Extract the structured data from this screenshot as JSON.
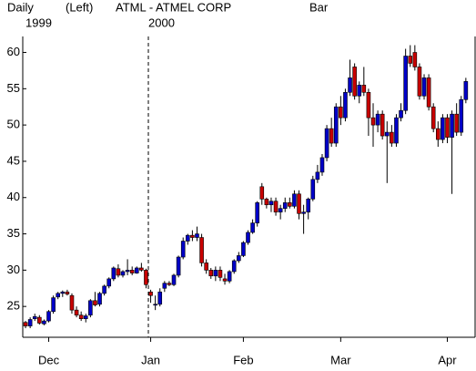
{
  "chart_data": {
    "type": "candlestick",
    "period": "Daily",
    "axis_side": "(Left)",
    "title": "ATML - ATMEL CORP",
    "style": "Bar",
    "year_labels": [
      {
        "value": 0,
        "label": "1999"
      },
      {
        "value": 26.5,
        "label": "2000"
      }
    ],
    "up_color": "#0000c8",
    "down_color": "#c80000",
    "xlim": [
      -0.6,
      96.6
    ],
    "xticks": [
      {
        "value": 5,
        "label": "Dec"
      },
      {
        "value": 27,
        "label": "Jan"
      },
      {
        "value": 47,
        "label": "Feb"
      },
      {
        "value": 68,
        "label": "Mar"
      },
      {
        "value": 91,
        "label": "Apr"
      }
    ],
    "ylim": [
      20.75,
      62.2
    ],
    "yticks": [
      25,
      30,
      35,
      40,
      45,
      50,
      55,
      60
    ],
    "ohlc": [
      [
        22.8,
        23.0,
        22.0,
        22.3
      ],
      [
        22.3,
        23.5,
        22.0,
        23.2
      ],
      [
        23.3,
        24.0,
        23.0,
        23.6
      ],
      [
        23.5,
        23.8,
        22.5,
        22.7
      ],
      [
        22.6,
        23.2,
        22.4,
        23.0
      ],
      [
        23.0,
        24.5,
        22.8,
        24.3
      ],
      [
        24.3,
        26.5,
        24.0,
        26.2
      ],
      [
        26.3,
        27.0,
        26.0,
        26.8
      ],
      [
        26.8,
        27.2,
        26.3,
        27.0
      ],
      [
        27.0,
        27.3,
        26.5,
        26.7
      ],
      [
        26.5,
        26.8,
        24.0,
        24.5
      ],
      [
        24.5,
        25.0,
        23.5,
        23.8
      ],
      [
        23.8,
        24.3,
        23.0,
        23.3
      ],
      [
        23.3,
        24.0,
        22.8,
        23.7
      ],
      [
        23.8,
        26.0,
        23.5,
        25.8
      ],
      [
        25.8,
        27.0,
        25.0,
        25.2
      ],
      [
        25.3,
        27.0,
        25.0,
        26.8
      ],
      [
        26.8,
        28.0,
        26.5,
        27.8
      ],
      [
        27.8,
        29.0,
        27.5,
        28.8
      ],
      [
        28.8,
        30.5,
        28.5,
        30.3
      ],
      [
        30.2,
        30.8,
        29.0,
        29.3
      ],
      [
        29.3,
        30.0,
        29.0,
        29.8
      ],
      [
        29.8,
        31.5,
        29.3,
        30.0
      ],
      [
        30.0,
        30.5,
        29.3,
        29.6
      ],
      [
        29.6,
        30.5,
        29.5,
        30.3
      ],
      [
        30.3,
        31.0,
        29.8,
        30.0
      ],
      [
        30.0,
        30.2,
        27.5,
        28.0
      ],
      [
        27.0,
        27.3,
        25.5,
        26.5
      ],
      [
        25.3,
        26.5,
        24.5,
        25.3
      ],
      [
        25.3,
        27.5,
        25.0,
        27.0
      ],
      [
        27.5,
        28.5,
        27.0,
        28.2
      ],
      [
        28.2,
        28.5,
        27.8,
        28.0
      ],
      [
        28.0,
        29.5,
        27.8,
        29.3
      ],
      [
        29.3,
        32.0,
        29.0,
        31.8
      ],
      [
        31.8,
        34.5,
        31.5,
        34.0
      ],
      [
        34.0,
        35.0,
        33.5,
        34.8
      ],
      [
        34.8,
        35.5,
        34.0,
        34.5
      ],
      [
        34.5,
        36.0,
        34.0,
        35.0
      ],
      [
        34.5,
        35.0,
        30.5,
        31.0
      ],
      [
        31.0,
        31.5,
        29.5,
        30.0
      ],
      [
        30.0,
        30.3,
        28.8,
        29.2
      ],
      [
        29.2,
        30.5,
        28.5,
        30.0
      ],
      [
        30.0,
        30.5,
        28.5,
        29.0
      ],
      [
        28.8,
        29.5,
        28.0,
        28.5
      ],
      [
        28.5,
        30.0,
        28.2,
        29.8
      ],
      [
        29.8,
        31.5,
        29.5,
        31.3
      ],
      [
        31.3,
        32.5,
        31.0,
        32.0
      ],
      [
        32.0,
        34.0,
        31.8,
        33.8
      ],
      [
        33.8,
        35.5,
        33.5,
        35.2
      ],
      [
        35.2,
        37.0,
        35.0,
        36.5
      ],
      [
        36.5,
        39.5,
        36.0,
        39.3
      ],
      [
        41.5,
        42.0,
        39.0,
        39.8
      ],
      [
        39.8,
        40.0,
        38.5,
        39.0
      ],
      [
        39.0,
        40.0,
        38.0,
        39.5
      ],
      [
        39.5,
        40.0,
        37.5,
        38.0
      ],
      [
        38.0,
        39.0,
        37.0,
        38.5
      ],
      [
        38.5,
        40.0,
        38.0,
        39.3
      ],
      [
        39.3,
        40.0,
        38.5,
        38.8
      ],
      [
        38.8,
        41.0,
        38.5,
        40.5
      ],
      [
        40.5,
        41.0,
        37.0,
        37.8
      ],
      [
        37.8,
        39.0,
        35.0,
        38.0
      ],
      [
        38.0,
        40.0,
        37.0,
        39.8
      ],
      [
        39.8,
        43.0,
        39.5,
        42.5
      ],
      [
        42.5,
        44.5,
        42.0,
        43.5
      ],
      [
        43.5,
        46.0,
        43.0,
        45.5
      ],
      [
        45.5,
        50.0,
        45.0,
        49.5
      ],
      [
        49.5,
        51.0,
        47.0,
        47.5
      ],
      [
        47.5,
        53.0,
        47.0,
        52.5
      ],
      [
        52.5,
        54.0,
        50.0,
        51.0
      ],
      [
        51.0,
        55.0,
        50.5,
        54.5
      ],
      [
        54.5,
        59.0,
        54.0,
        56.5
      ],
      [
        58.0,
        58.5,
        53.5,
        54.0
      ],
      [
        54.0,
        56.0,
        53.0,
        55.5
      ],
      [
        55.5,
        58.0,
        54.0,
        54.5
      ],
      [
        54.5,
        55.0,
        48.5,
        51.0
      ],
      [
        51.0,
        53.0,
        47.0,
        50.0
      ],
      [
        50.0,
        52.0,
        49.0,
        51.5
      ],
      [
        51.5,
        52.0,
        48.0,
        48.5
      ],
      [
        48.5,
        50.5,
        42.0,
        49.0
      ],
      [
        49.0,
        50.0,
        47.0,
        47.5
      ],
      [
        47.5,
        51.5,
        47.0,
        51.0
      ],
      [
        51.0,
        53.0,
        50.5,
        52.0
      ],
      [
        52.0,
        60.5,
        51.5,
        59.5
      ],
      [
        59.5,
        61.0,
        58.0,
        58.5
      ],
      [
        60.0,
        61.0,
        57.5,
        58.0
      ],
      [
        58.0,
        58.5,
        53.5,
        54.0
      ],
      [
        54.0,
        57.0,
        53.5,
        56.5
      ],
      [
        56.5,
        57.0,
        52.0,
        52.5
      ],
      [
        52.5,
        53.0,
        49.0,
        49.5
      ],
      [
        49.5,
        50.5,
        47.0,
        48.0
      ],
      [
        48.0,
        51.5,
        47.5,
        51.0
      ],
      [
        51.0,
        51.5,
        47.5,
        48.3
      ],
      [
        48.3,
        52.0,
        40.5,
        51.5
      ],
      [
        51.5,
        53.0,
        48.5,
        49.0
      ],
      [
        49.0,
        54.0,
        48.5,
        53.5
      ],
      [
        53.5,
        56.5,
        53.0,
        56.0
      ]
    ]
  }
}
